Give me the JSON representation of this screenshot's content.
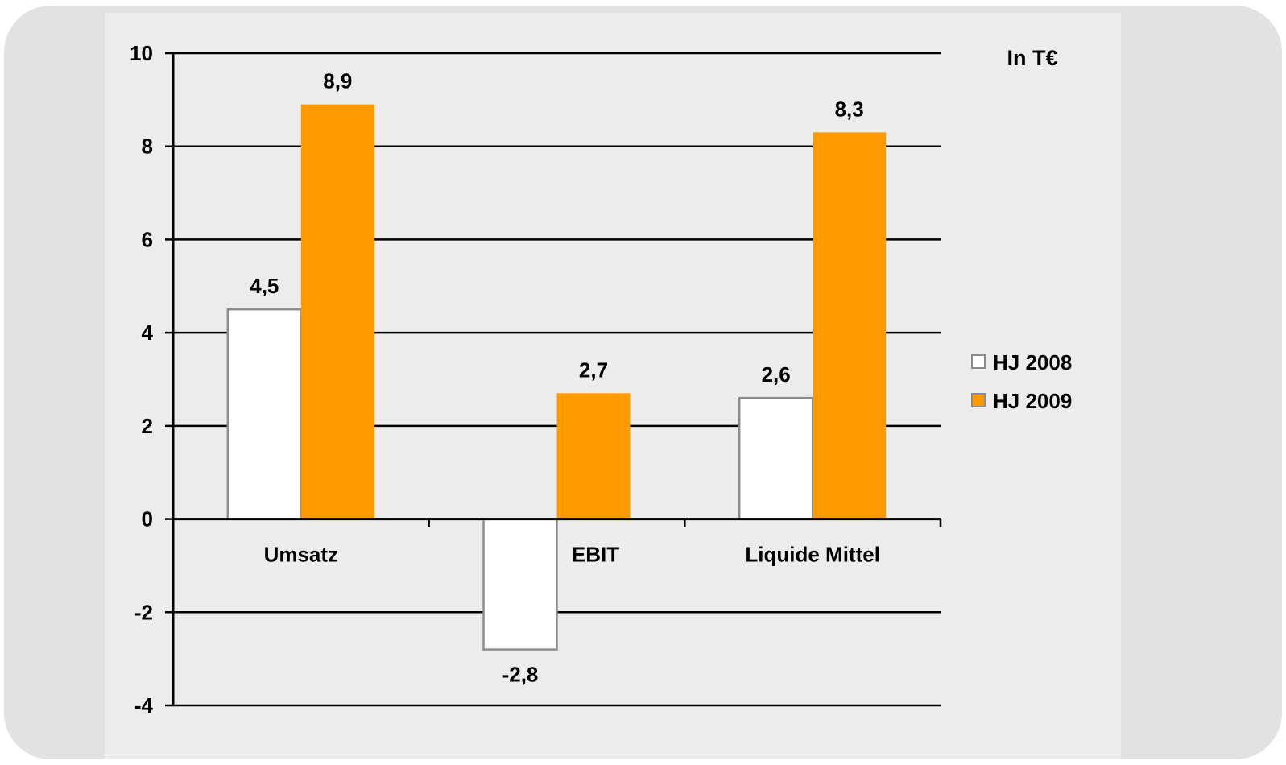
{
  "chart_data": {
    "type": "bar",
    "categories": [
      "Umsatz",
      "EBIT",
      "Liquide Mittel"
    ],
    "series": [
      {
        "name": "HJ 2008",
        "values": [
          4.5,
          -2.8,
          2.6
        ],
        "labels": [
          "4,5",
          "-2,8",
          "2,6"
        ],
        "color": "#ffffff",
        "stroke": "#8c8c8c"
      },
      {
        "name": "HJ 2009",
        "values": [
          8.9,
          2.7,
          8.3
        ],
        "labels": [
          "8,9",
          "2,7",
          "8,3"
        ],
        "color": "#ff9900",
        "stroke": "#ff9900"
      }
    ],
    "unit_label": "In T€",
    "ylim": [
      -4,
      10
    ],
    "yticks": [
      -4,
      -2,
      0,
      2,
      4,
      6,
      8,
      10
    ],
    "grid": true,
    "legend": "right"
  }
}
